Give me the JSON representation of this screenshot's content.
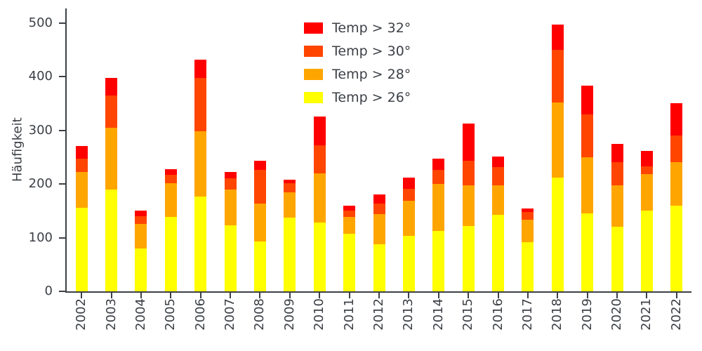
{
  "figure": {
    "background": "#ffffff"
  },
  "colors": {
    "axis": "#3c4046",
    "background": "#ffffff"
  },
  "chart_data": {
    "type": "bar",
    "stacked": true,
    "title": "",
    "xlabel": "",
    "ylabel": "Häufigkeit",
    "categories": [
      "2002",
      "2003",
      "2004",
      "2005",
      "2006",
      "2007",
      "2008",
      "2009",
      "2010",
      "2011",
      "2012",
      "2013",
      "2014",
      "2015",
      "2016",
      "2017",
      "2018",
      "2019",
      "2020",
      "2021",
      "2022"
    ],
    "series": [
      {
        "name": "Temp > 26°",
        "color": "#ffff00",
        "values": [
          155,
          190,
          80,
          138,
          176,
          123,
          93,
          137,
          128,
          107,
          88,
          103,
          113,
          122,
          142,
          91,
          212,
          145,
          120,
          150,
          160
        ]
      },
      {
        "name": "Temp > 28°",
        "color": "#ffa500",
        "values": [
          67,
          115,
          45,
          64,
          122,
          67,
          70,
          47,
          92,
          32,
          56,
          66,
          87,
          75,
          55,
          42,
          140,
          105,
          77,
          68,
          80
        ]
      },
      {
        "name": "Temp > 30°",
        "color": "#ff4500",
        "values": [
          25,
          60,
          15,
          15,
          100,
          21,
          63,
          17,
          52,
          12,
          20,
          22,
          26,
          46,
          34,
          15,
          98,
          80,
          43,
          15,
          50
        ]
      },
      {
        "name": "Temp > 32°",
        "color": "#ff0000",
        "values": [
          24,
          32,
          10,
          10,
          34,
          11,
          17,
          7,
          53,
          9,
          17,
          21,
          21,
          70,
          20,
          6,
          47,
          53,
          35,
          29,
          60
        ]
      }
    ],
    "legend_order": [
      "Temp > 32°",
      "Temp > 30°",
      "Temp > 28°",
      "Temp > 26°"
    ],
    "legend_position": "upper center",
    "ylim": [
      0,
      527
    ],
    "yticks": [
      0,
      100,
      200,
      300,
      400,
      500
    ],
    "grid": false
  }
}
